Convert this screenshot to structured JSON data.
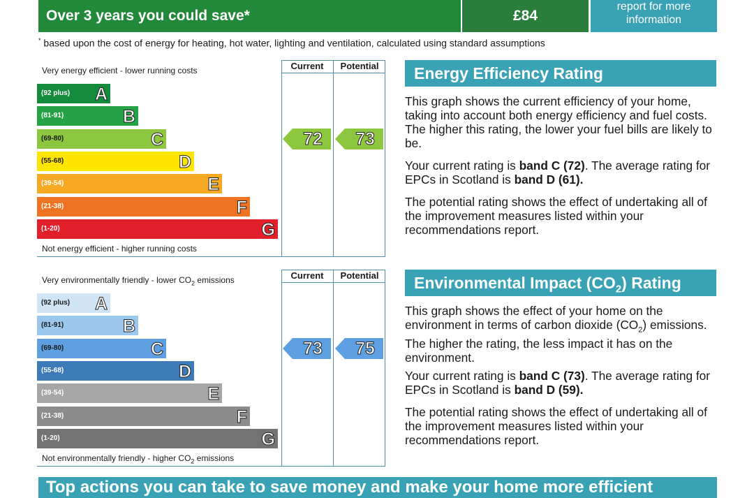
{
  "banner": {
    "save_label": "Over 3 years you could save*",
    "save_amount": "£84",
    "report_link_line1": "report for more",
    "report_link_line2": "information",
    "footnote_mark": "*",
    "footnote": "based upon the cost of energy for heating, hot water, lighting and ventilation, calculated using standard assumptions"
  },
  "energy_chart": {
    "top_caption": "Very energy efficient - lower running costs",
    "bottom_caption": "Not energy efficient - higher running costs",
    "current_header": "Current",
    "potential_header": "Potential",
    "bands": [
      {
        "range": "(92 plus)",
        "letter": "A",
        "color": "#138a3c"
      },
      {
        "range": "(81-91)",
        "letter": "B",
        "color": "#25a245"
      },
      {
        "range": "(69-80)",
        "letter": "C",
        "color": "#8dc63f"
      },
      {
        "range": "(55-68)",
        "letter": "D",
        "color": "#ffe600"
      },
      {
        "range": "(39-54)",
        "letter": "E",
        "color": "#f8a924"
      },
      {
        "range": "(21-38)",
        "letter": "F",
        "color": "#ee7423"
      },
      {
        "range": "(1-20)",
        "letter": "G",
        "color": "#e2202c"
      }
    ],
    "current": {
      "value": "72",
      "band_index": 2,
      "color": "#8dc63f"
    },
    "potential": {
      "value": "73",
      "band_index": 2,
      "color": "#8dc63f"
    }
  },
  "env_chart": {
    "top_caption_pre": "Very environmentally friendly - lower CO",
    "top_caption_sub": "2",
    "top_caption_post": " emissions",
    "bottom_caption_pre": "Not environmentally friendly - higher CO",
    "bottom_caption_sub": "2",
    "bottom_caption_post": " emissions",
    "current_header": "Current",
    "potential_header": "Potential",
    "bands": [
      {
        "range": "(92 plus)",
        "letter": "A",
        "color": "#cfe4f5"
      },
      {
        "range": "(81-91)",
        "letter": "B",
        "color": "#9cc7ec"
      },
      {
        "range": "(69-80)",
        "letter": "C",
        "color": "#5e9fe2"
      },
      {
        "range": "(55-68)",
        "letter": "D",
        "color": "#3e7ab8"
      },
      {
        "range": "(39-54)",
        "letter": "E",
        "color": "#a6a6a6"
      },
      {
        "range": "(21-38)",
        "letter": "F",
        "color": "#8c8c8c"
      },
      {
        "range": "(1-20)",
        "letter": "G",
        "color": "#737373"
      }
    ],
    "current": {
      "value": "73",
      "band_index": 2,
      "color": "#5e9fe2"
    },
    "potential": {
      "value": "75",
      "band_index": 2,
      "color": "#5e9fe2"
    }
  },
  "energy_text": {
    "title": "Energy Efficiency Rating",
    "p1": "This graph shows the current efficiency of your home, taking into account both energy efficiency and fuel costs. The higher this rating, the lower your fuel bills are likely to be.",
    "p2_pre": "Your current rating is ",
    "p2_bold1": "band C (72)",
    "p2_mid": ". The average rating for EPCs in Scotland is ",
    "p2_bold2": "band D (61).",
    "p3": "The potential rating shows the effect of undertaking all of the improvement measures listed within your recommendations report."
  },
  "env_text": {
    "title_pre": "Environmental Impact (CO",
    "title_sub": "2",
    "title_post": ") Rating",
    "p1_pre": "This graph shows the effect of your home on the environment in terms of carbon dioxide (CO",
    "p1_sub": "2",
    "p1_post": ") emissions. The higher the rating, the less impact it has on the environment.",
    "p2_pre": "Your current rating is ",
    "p2_bold1": "band C (73)",
    "p2_mid": ". The average rating for EPCs in Scotland is ",
    "p2_bold2": "band D (59).",
    "p3": "The potential rating shows the effect of undertaking all of the improvement measures listed within your recommendations report."
  },
  "bottom_bar": {
    "text": "Top actions you can take to save money and make your home more efficient"
  }
}
